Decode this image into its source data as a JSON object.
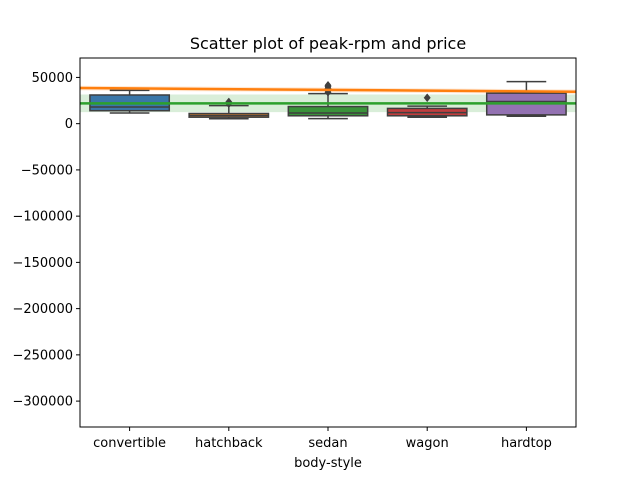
{
  "chart_data": {
    "type": "box",
    "title": "Scatter plot of peak-rpm and price",
    "xlabel": "body-style",
    "ylabel": "",
    "ylim": [
      -328000,
      71000
    ],
    "yticks": [
      50000,
      0,
      -50000,
      -100000,
      -150000,
      -200000,
      -250000,
      -300000
    ],
    "ytick_labels": [
      "50000",
      "0",
      "−50000",
      "−100000",
      "−150000",
      "−200000",
      "−250000",
      "−300000"
    ],
    "categories": [
      "convertible",
      "hatchback",
      "sedan",
      "wagon",
      "hardtop"
    ],
    "boxes": [
      {
        "category": "convertible",
        "whisker_low": 11500,
        "q1": 14000,
        "median": 18000,
        "q3": 31000,
        "whisker_high": 36000,
        "outliers": [],
        "color": "#3a76a8"
      },
      {
        "category": "hatchback",
        "whisker_low": 5300,
        "q1": 7000,
        "median": 8800,
        "q3": 11000,
        "whisker_high": 19500,
        "outliers": [
          21500,
          23500
        ],
        "color": "#e1812c"
      },
      {
        "category": "sedan",
        "whisker_low": 5500,
        "q1": 8500,
        "median": 11500,
        "q3": 18500,
        "whisker_high": 32500,
        "outliers": [
          34000,
          36000,
          38000,
          40000,
          41500
        ],
        "color": "#3a923a"
      },
      {
        "category": "wagon",
        "whisker_low": 7000,
        "q1": 8500,
        "median": 12000,
        "q3": 16500,
        "whisker_high": 19000,
        "outliers": [
          28000
        ],
        "color": "#c03d3e"
      },
      {
        "category": "hardtop",
        "whisker_low": 8000,
        "q1": 9500,
        "median": 24000,
        "q3": 33000,
        "whisker_high": 45500,
        "outliers": [],
        "color": "#9372b2"
      }
    ],
    "regression_lines": [
      {
        "color": "#ff7f0e",
        "start": 38500,
        "end": 34500,
        "band": 2500
      },
      {
        "color": "#2ca02c",
        "start": 22000,
        "end": 22000,
        "band": 9500
      }
    ],
    "grid": false,
    "legend": "none"
  }
}
